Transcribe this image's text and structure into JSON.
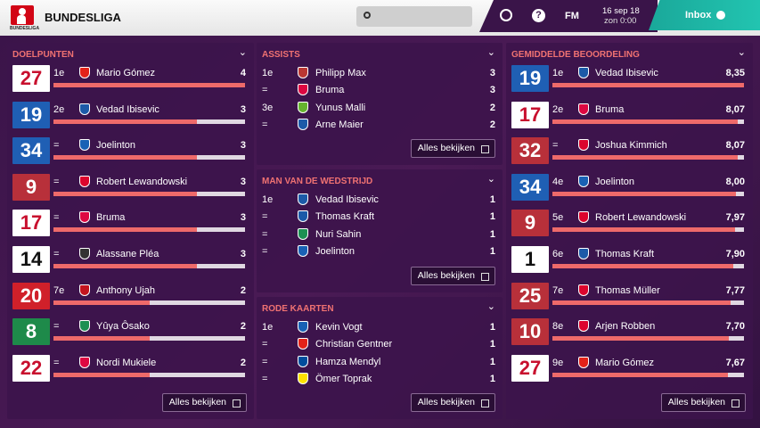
{
  "header": {
    "logo_text": "BUNDESLIGA",
    "title": "BUNDESLIGA",
    "help": "?",
    "fm": "FM",
    "date": "16 sep 18",
    "time": "zon 0:00",
    "inbox": "Inbox"
  },
  "panels": [
    {
      "title": "DOELPUNTEN",
      "button": "Alles bekijken",
      "rows": [
        {
          "rank": "1e",
          "shirt": "27",
          "shirt_bg": "#ffffff",
          "shirt_fg": "#c8102e",
          "crest": "#e32219",
          "name": "Mario Gómez",
          "value": 4
        },
        {
          "rank": "2e",
          "shirt": "19",
          "shirt_bg": "#1f5fb4",
          "shirt_fg": "#ffffff",
          "crest": "#1c5aa8",
          "name": "Vedad Ibisevic",
          "value": 3
        },
        {
          "rank": "=",
          "shirt": "34",
          "shirt_bg": "#1f5fb4",
          "shirt_fg": "#ffffff",
          "crest": "#1961b5",
          "name": "Joelinton",
          "value": 3
        },
        {
          "rank": "=",
          "shirt": "9",
          "shirt_bg": "#b8303a",
          "shirt_fg": "#ffffff",
          "crest": "#dc052d",
          "name": "Robert Lewandowski",
          "value": 3
        },
        {
          "rank": "=",
          "shirt": "17",
          "shirt_bg": "#ffffff",
          "shirt_fg": "#c8102e",
          "crest": "#dd0741",
          "name": "Bruma",
          "value": 3
        },
        {
          "rank": "=",
          "shirt": "14",
          "shirt_bg": "#ffffff",
          "shirt_fg": "#111111",
          "crest": "#333333",
          "name": "Alassane Pléa",
          "value": 3
        },
        {
          "rank": "7e",
          "shirt": "20",
          "shirt_bg": "#d0202a",
          "shirt_fg": "#ffffff",
          "crest": "#c3141e",
          "name": "Anthony Ujah",
          "value": 2
        },
        {
          "rank": "=",
          "shirt": "8",
          "shirt_bg": "#1e8a4a",
          "shirt_fg": "#ffffff",
          "crest": "#1d9053",
          "name": "Yûya Ôsako",
          "value": 2
        },
        {
          "rank": "=",
          "shirt": "22",
          "shirt_bg": "#ffffff",
          "shirt_fg": "#c8102e",
          "crest": "#dd0741",
          "name": "Nordi Mukiele",
          "value": 2
        }
      ]
    },
    {
      "title": "ASSISTS",
      "button": "Alles bekijken",
      "rows": [
        {
          "rank": "1e",
          "crest": "#ba3733",
          "name": "Philipp Max",
          "value": 3
        },
        {
          "rank": "=",
          "crest": "#dd0741",
          "name": "Bruma",
          "value": 3
        },
        {
          "rank": "3e",
          "crest": "#65b32e",
          "name": "Yunus Malli",
          "value": 2
        },
        {
          "rank": "=",
          "crest": "#1c5aa8",
          "name": "Arne Maier",
          "value": 2
        }
      ]
    },
    {
      "title": "MAN VAN DE WEDSTRIJD",
      "button": "Alles bekijken",
      "rows": [
        {
          "rank": "1e",
          "crest": "#1c5aa8",
          "name": "Vedad Ibisevic",
          "value": 1
        },
        {
          "rank": "=",
          "crest": "#1c5aa8",
          "name": "Thomas Kraft",
          "value": 1
        },
        {
          "rank": "=",
          "crest": "#1d9053",
          "name": "Nuri Sahin",
          "value": 1
        },
        {
          "rank": "=",
          "crest": "#1961b5",
          "name": "Joelinton",
          "value": 1
        }
      ]
    },
    {
      "title": "RODE KAARTEN",
      "button": "Alles bekijken",
      "rows": [
        {
          "rank": "1e",
          "crest": "#1961b5",
          "name": "Kevin Vogt",
          "value": 1
        },
        {
          "rank": "=",
          "crest": "#e32219",
          "name": "Christian Gentner",
          "value": 1
        },
        {
          "rank": "=",
          "crest": "#004d9d",
          "name": "Hamza Mendyl",
          "value": 1
        },
        {
          "rank": "=",
          "crest": "#fde100",
          "name": "Ömer Toprak",
          "value": 1
        }
      ]
    },
    {
      "title": "GEMIDDELDE BEOORDELING",
      "button": "Alles bekijken",
      "rows": [
        {
          "rank": "1e",
          "shirt": "19",
          "shirt_bg": "#1f5fb4",
          "shirt_fg": "#ffffff",
          "crest": "#1c5aa8",
          "name": "Vedad Ibisevic",
          "value": {
            "value": 8.35,
            "label": "8,35"
          }
        },
        {
          "rank": "2e",
          "shirt": "17",
          "shirt_bg": "#ffffff",
          "shirt_fg": "#c8102e",
          "crest": "#dd0741",
          "name": "Bruma",
          "value": {
            "value": 8.07,
            "label": "8,07"
          }
        },
        {
          "rank": "=",
          "shirt": "32",
          "shirt_bg": "#b8303a",
          "shirt_fg": "#ffffff",
          "crest": "#dc052d",
          "name": "Joshua Kimmich",
          "value": {
            "value": 8.07,
            "label": "8,07"
          }
        },
        {
          "rank": "4e",
          "shirt": "34",
          "shirt_bg": "#1f5fb4",
          "shirt_fg": "#ffffff",
          "crest": "#1961b5",
          "name": "Joelinton",
          "value": {
            "value": 8.0,
            "label": "8,00"
          }
        },
        {
          "rank": "5e",
          "shirt": "9",
          "shirt_bg": "#b8303a",
          "shirt_fg": "#ffffff",
          "crest": "#dc052d",
          "name": "Robert Lewandowski",
          "value": {
            "value": 7.97,
            "label": "7,97"
          }
        },
        {
          "rank": "6e",
          "shirt": "1",
          "shirt_bg": "#ffffff",
          "shirt_fg": "#111111",
          "crest": "#1c5aa8",
          "name": "Thomas Kraft",
          "value": {
            "value": 7.9,
            "label": "7,90"
          }
        },
        {
          "rank": "7e",
          "shirt": "25",
          "shirt_bg": "#b8303a",
          "shirt_fg": "#ffffff",
          "crest": "#dc052d",
          "name": "Thomas Müller",
          "value": {
            "value": 7.77,
            "label": "7,77"
          }
        },
        {
          "rank": "8e",
          "shirt": "10",
          "shirt_bg": "#b8303a",
          "shirt_fg": "#ffffff",
          "crest": "#dc052d",
          "name": "Arjen Robben",
          "value": {
            "value": 7.7,
            "label": "7,70"
          }
        },
        {
          "rank": "9e",
          "shirt": "27",
          "shirt_bg": "#ffffff",
          "shirt_fg": "#c8102e",
          "crest": "#e32219",
          "name": "Mario Gómez",
          "value": {
            "value": 7.67,
            "label": "7,67"
          }
        }
      ]
    }
  ]
}
